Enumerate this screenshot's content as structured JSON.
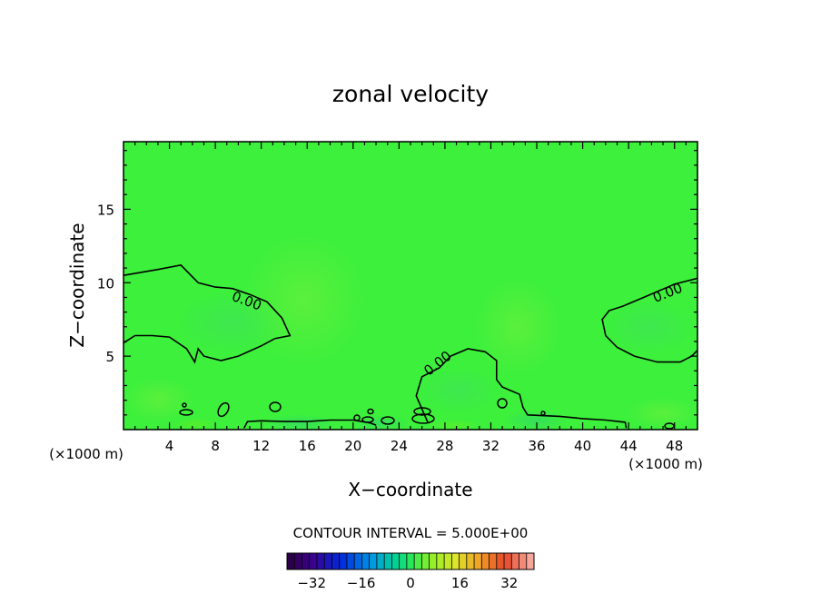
{
  "chart_data": {
    "type": "heatmap",
    "title": "zonal velocity",
    "xlabel": "X−coordinate",
    "ylabel": "Z−coordinate",
    "x_unit_left": "(×1000 m)",
    "x_unit_right": "(×1000 m)",
    "xlim": [
      0,
      50
    ],
    "ylim": [
      0,
      19.6
    ],
    "x_ticks": [
      4,
      8,
      12,
      16,
      20,
      24,
      28,
      32,
      36,
      40,
      44,
      48
    ],
    "y_ticks": [
      5,
      10,
      15
    ],
    "contour_label": "0.00",
    "contour_interval_text": "CONTOUR INTERVAL = 5.000E+00",
    "colorbar": {
      "range": [
        -40,
        40
      ],
      "ticks": [
        -32,
        -16,
        0,
        16,
        32
      ],
      "tick_labels": [
        "−32",
        "−16",
        "0",
        "16",
        "32"
      ]
    },
    "field_note_color": "#3cf03c",
    "zero_contours": [
      [
        [
          0,
          10.5
        ],
        [
          3,
          10.9
        ],
        [
          5,
          11.2
        ],
        [
          5.5,
          10.8
        ],
        [
          6.5,
          10
        ],
        [
          8,
          9.7
        ],
        [
          9.5,
          9.6
        ],
        [
          11,
          9.2
        ],
        [
          12.5,
          8.7
        ],
        [
          13.8,
          7.6
        ],
        [
          14.5,
          6.4
        ],
        [
          13.2,
          6.2
        ],
        [
          12,
          5.7
        ],
        [
          10,
          5
        ],
        [
          8.5,
          4.7
        ],
        [
          7,
          5
        ],
        [
          6.5,
          5.5
        ],
        [
          6.2,
          4.6
        ],
        [
          5.5,
          5.5
        ],
        [
          4,
          6.3
        ],
        [
          2.5,
          6.4
        ],
        [
          1,
          6.4
        ],
        [
          0,
          5.9
        ]
      ],
      [
        [
          50,
          10.3
        ],
        [
          48,
          9.9
        ],
        [
          46.5,
          9.4
        ],
        [
          45,
          8.9
        ],
        [
          43.5,
          8.4
        ],
        [
          42.3,
          8.1
        ],
        [
          41.7,
          7.5
        ],
        [
          42,
          6.4
        ],
        [
          43,
          5.6
        ],
        [
          44.5,
          5
        ],
        [
          46.5,
          4.6
        ],
        [
          48.5,
          4.6
        ],
        [
          49.5,
          5
        ],
        [
          50,
          5.4
        ]
      ],
      [
        [
          10.5,
          0.1
        ],
        [
          10.8,
          0.55
        ],
        [
          12,
          0.6
        ],
        [
          14,
          0.55
        ],
        [
          16,
          0.55
        ],
        [
          18,
          0.65
        ],
        [
          20,
          0.65
        ],
        [
          21.5,
          0.45
        ],
        [
          22,
          0.3
        ]
      ],
      [
        [
          26.5,
          0.5
        ],
        [
          25.5,
          2.3
        ],
        [
          26,
          3.6
        ],
        [
          27.5,
          4.2
        ],
        [
          28.5,
          5
        ],
        [
          30,
          5.5
        ],
        [
          31.5,
          5.3
        ],
        [
          32.5,
          4.7
        ],
        [
          32.5,
          3.4
        ],
        [
          33,
          2.9
        ],
        [
          34.5,
          2.4
        ],
        [
          34.8,
          1.5
        ],
        [
          35.2,
          1.0
        ],
        [
          38,
          0.9
        ],
        [
          40,
          0.75
        ],
        [
          42,
          0.65
        ],
        [
          43.7,
          0.5
        ],
        [
          43.8,
          0.1
        ]
      ]
    ]
  }
}
